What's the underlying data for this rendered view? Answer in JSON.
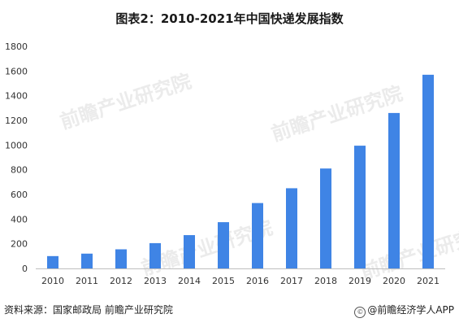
{
  "chart_data": {
    "type": "bar",
    "title": "图表2：2010-2021年中国快递发展指数",
    "categories": [
      "2010",
      "2011",
      "2012",
      "2013",
      "2014",
      "2015",
      "2016",
      "2017",
      "2018",
      "2019",
      "2020",
      "2021"
    ],
    "series": [
      {
        "values": [
          100,
          120,
          155,
          205,
          270,
          375,
          530,
          650,
          810,
          995,
          1260,
          1570
        ]
      }
    ],
    "yticks": [
      "0",
      "200",
      "400",
      "600",
      "800",
      "1000",
      "1200",
      "1400",
      "1600",
      "1800"
    ],
    "ylim": [
      0,
      1800
    ],
    "xlabel": "",
    "ylabel": "",
    "grid": false,
    "bar_color": "#3f84e5"
  },
  "footer": {
    "source": "资料来源：国家邮政局 前瞻产业研究院",
    "brand": "@前瞻经济学人APP",
    "brand_icon": "copyright-circle-icon"
  },
  "watermark": {
    "text": "前瞻产业研究院"
  }
}
